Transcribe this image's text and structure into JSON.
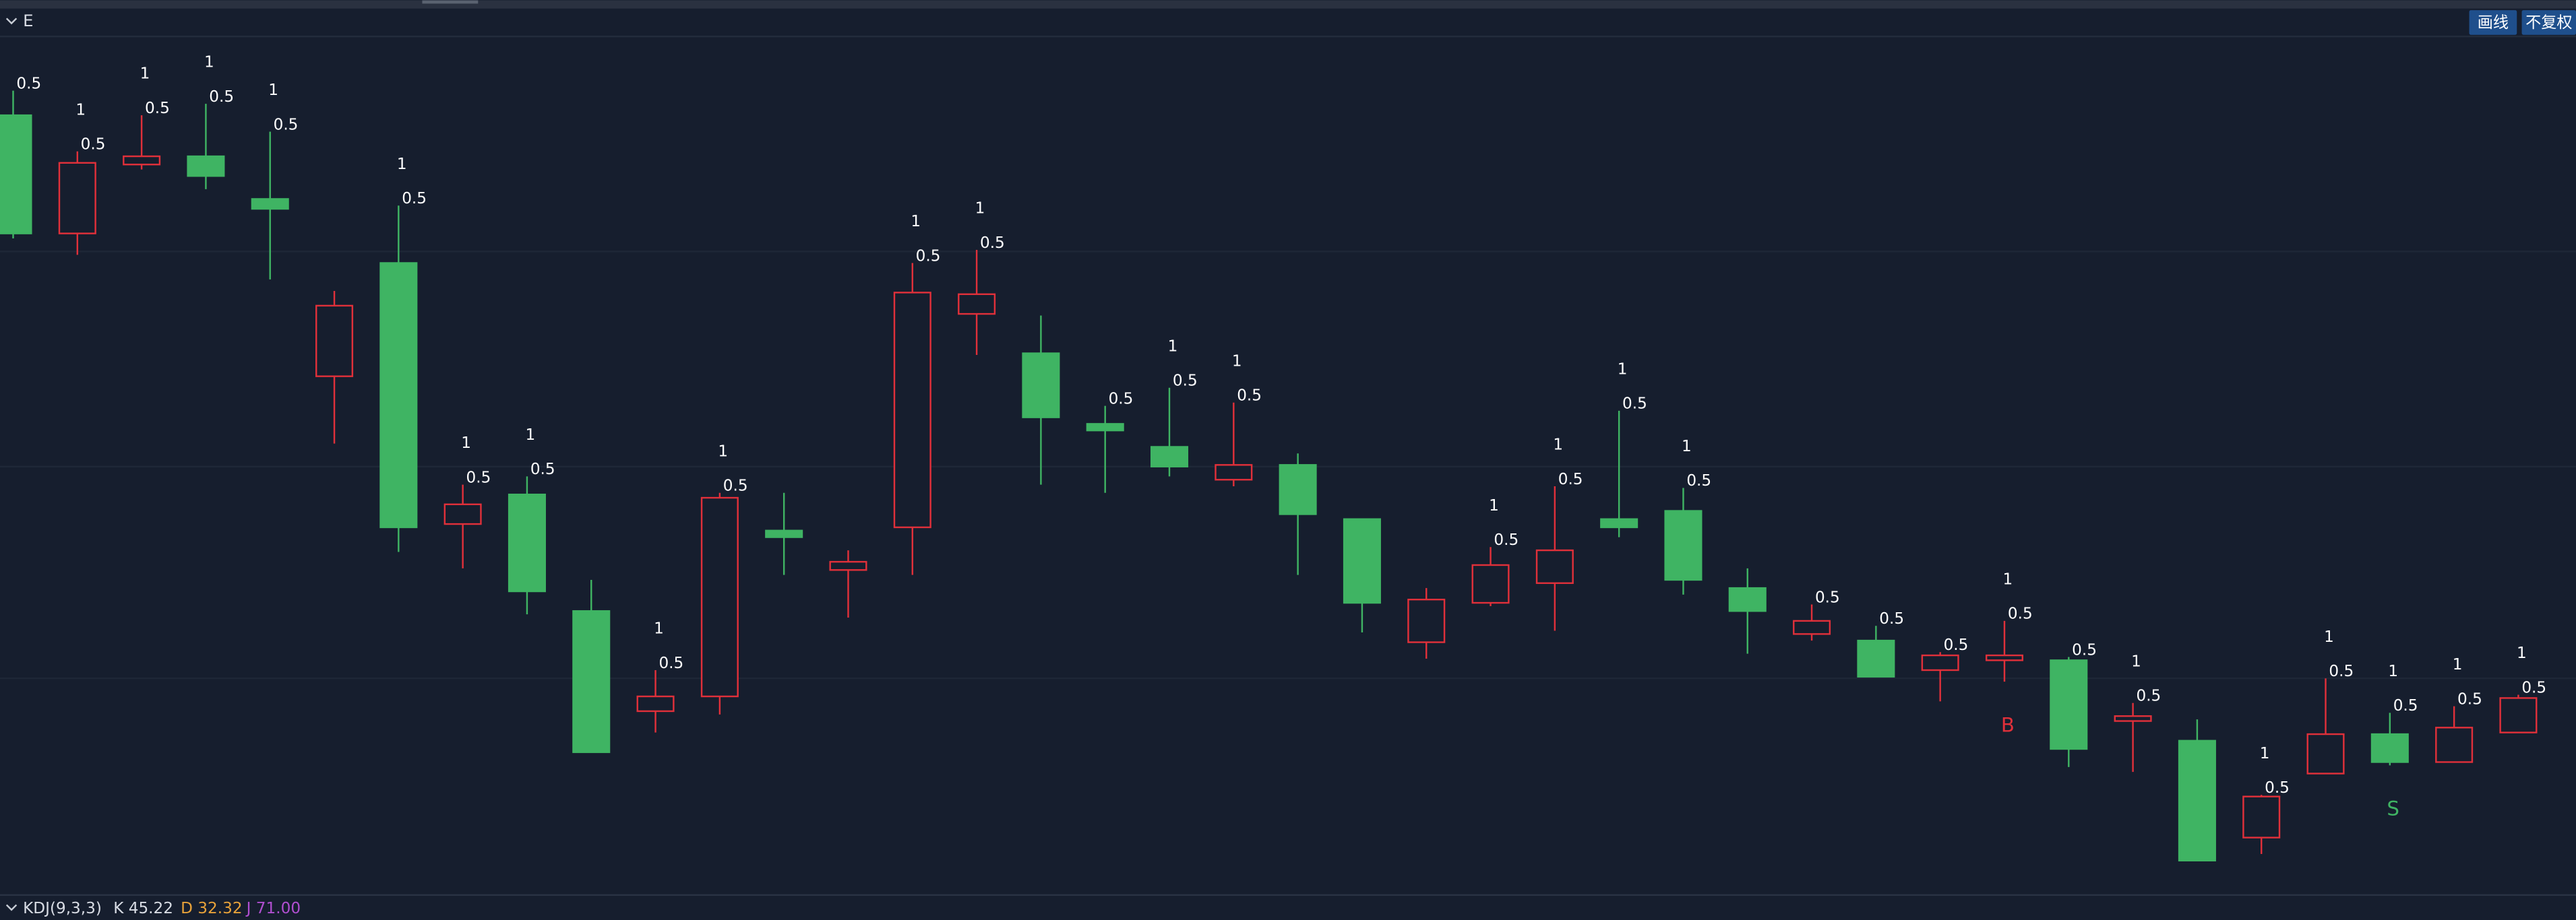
{
  "header": {
    "title": "E",
    "buttons": [
      "画线",
      "不复权"
    ]
  },
  "chart_data": {
    "type": "candlestick",
    "ylim": [
      0,
      105
    ],
    "up_color": "#e0303a",
    "down_color": "#3fb463",
    "open": [
      95,
      80.6,
      89,
      90,
      84.8,
      63.2,
      77,
      45.2,
      48.8,
      34.6,
      22.4,
      24.2,
      44.4,
      39.6,
      44.8,
      70.8,
      66,
      57.4,
      54.6,
      50.6,
      52.4,
      45.8,
      30.8,
      35.6,
      38,
      45.8,
      46.8,
      37.4,
      31.8,
      31,
      27.4,
      28.6,
      28.6,
      21.2,
      18.8,
      7,
      14.8,
      19.6,
      16.2,
      19.8
    ],
    "high": [
      98,
      90.6,
      95,
      96.4,
      93,
      73.6,
      84,
      50,
      51,
      38.4,
      27.4,
      49,
      49,
      42,
      77,
      78.6,
      70.6,
      59.6,
      61.8,
      60,
      53.8,
      45.8,
      37.4,
      42.4,
      49.8,
      59,
      49.6,
      39.8,
      35.4,
      32.8,
      29.6,
      33.4,
      29,
      23.4,
      21.4,
      12.2,
      26.4,
      22.2,
      23,
      24.4
    ],
    "low": [
      80,
      78,
      88.4,
      86,
      75,
      55,
      41.8,
      39.8,
      34.2,
      17.4,
      19.8,
      22,
      39,
      33.8,
      39,
      65.8,
      50,
      49,
      51,
      49.8,
      39,
      32,
      28.8,
      35.2,
      32.2,
      43.6,
      36.6,
      29.4,
      31,
      26.6,
      23.6,
      26,
      15.6,
      15,
      4.2,
      5,
      14.8,
      15.8,
      16.2,
      19.8
    ],
    "close": [
      80.6,
      89.2,
      90,
      87.6,
      83.6,
      71.8,
      44.8,
      47.6,
      37,
      17.4,
      24.2,
      48.4,
      43.6,
      40.6,
      73.4,
      73.2,
      58.2,
      56.6,
      52.2,
      52.4,
      46.4,
      35.6,
      36,
      40.2,
      42,
      44.8,
      38.4,
      34.6,
      33.4,
      26.6,
      29.2,
      29.2,
      17.8,
      21.8,
      4.2,
      12,
      19.6,
      16.2,
      20.4,
      24
    ],
    "labels": [
      [
        "0.5"
      ],
      [
        "1",
        "0.5"
      ],
      [
        "1",
        "0.5"
      ],
      [
        "1",
        "0.5"
      ],
      [
        "1",
        "0.5"
      ],
      null,
      [
        "1",
        "0.5"
      ],
      [
        "1",
        "0.5"
      ],
      [
        "1",
        "0.5"
      ],
      null,
      [
        "1",
        "0.5"
      ],
      [
        "1",
        "0.5"
      ],
      null,
      null,
      [
        "1",
        "0.5"
      ],
      [
        "1",
        "0.5"
      ],
      null,
      [
        "0.5"
      ],
      [
        "1",
        "0.5"
      ],
      [
        "1",
        "0.5"
      ],
      null,
      null,
      null,
      [
        "1",
        "0.5"
      ],
      [
        "1",
        "0.5"
      ],
      [
        "1",
        "0.5"
      ],
      [
        "1",
        "0.5"
      ],
      null,
      [
        "0.5"
      ],
      [
        "0.5"
      ],
      [
        "0.5"
      ],
      [
        "1",
        "0.5"
      ],
      [
        "0.5"
      ],
      [
        "1",
        "0.5"
      ],
      null,
      [
        "1",
        "0.5"
      ],
      [
        "1",
        "0.5"
      ],
      [
        "1",
        "0.5"
      ],
      [
        "1",
        "0.5"
      ],
      [
        "1",
        "0.5"
      ]
    ],
    "signals": [
      null,
      null,
      null,
      null,
      null,
      null,
      null,
      null,
      null,
      null,
      null,
      null,
      null,
      null,
      null,
      null,
      null,
      null,
      null,
      null,
      null,
      null,
      null,
      null,
      null,
      null,
      null,
      null,
      null,
      null,
      null,
      "B",
      null,
      null,
      null,
      null,
      null,
      "S",
      null,
      null
    ]
  },
  "indicator": {
    "name": "KDJ(9,3,3)",
    "k": "K 45.22",
    "d": "D 32.32",
    "j": "J 71.00"
  }
}
